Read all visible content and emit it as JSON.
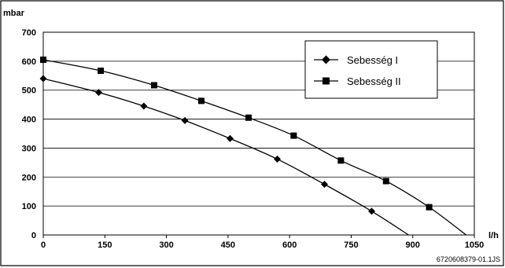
{
  "chart_data": {
    "type": "line",
    "ylabel": "mbar",
    "xlabel": "l/h",
    "xlim": [
      0,
      1050
    ],
    "ylim": [
      0,
      700
    ],
    "x_ticks": [
      0,
      150,
      300,
      450,
      600,
      750,
      900,
      1050
    ],
    "y_ticks": [
      0,
      100,
      200,
      300,
      400,
      500,
      600,
      700
    ],
    "grid": "horizontal",
    "legend_position": "top-right",
    "series": [
      {
        "name": "Sebesség I",
        "marker": "diamond",
        "x": [
          0,
          135,
          245,
          345,
          455,
          570,
          685,
          800
        ],
        "y": [
          540,
          492,
          445,
          395,
          333,
          262,
          175,
          82
        ],
        "curve_end": [
          890,
          0
        ]
      },
      {
        "name": "Sebesség II",
        "marker": "square",
        "x": [
          0,
          140,
          270,
          385,
          500,
          610,
          725,
          835,
          940
        ],
        "y": [
          605,
          567,
          517,
          463,
          405,
          343,
          257,
          186,
          96
        ],
        "curve_end": [
          1030,
          0
        ]
      }
    ],
    "figure_id": "6720608379-01.1JS"
  }
}
